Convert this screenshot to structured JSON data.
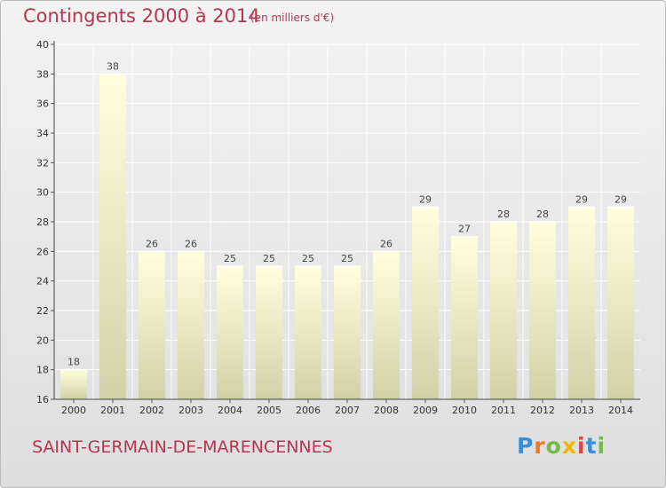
{
  "header": {
    "title": "Contingents 2000 à 2014",
    "subtitle": "(en milliers d'€)"
  },
  "footer": {
    "commune": "SAINT-GERMAIN-DE-MARENCENNES",
    "brand": "Proxiti"
  },
  "colors": {
    "title": "#b5364f",
    "bar_top": "#ffffdd",
    "bar_bottom": "#d2d2a8",
    "grid": "#ffffff",
    "brand_letters": [
      "#3b8fd6",
      "#e87c2a",
      "#7ab648",
      "#f2b705",
      "#d64545",
      "#3b8fd6",
      "#7ab648"
    ]
  },
  "chart_data": {
    "type": "bar",
    "categories": [
      "2000",
      "2001",
      "2002",
      "2003",
      "2004",
      "2005",
      "2006",
      "2007",
      "2008",
      "2009",
      "2010",
      "2011",
      "2012",
      "2013",
      "2014"
    ],
    "values": [
      18,
      38,
      26,
      26,
      25,
      25,
      25,
      25,
      26,
      29,
      27,
      28,
      28,
      29,
      29
    ],
    "ylim": [
      16,
      40
    ],
    "yticks": [
      16,
      18,
      20,
      22,
      24,
      26,
      28,
      30,
      32,
      34,
      36,
      38,
      40
    ],
    "grid": true,
    "data_labels": true
  }
}
